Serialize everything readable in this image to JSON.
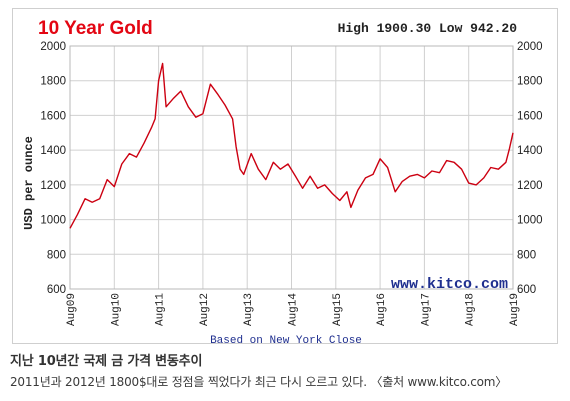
{
  "chart_data": {
    "type": "line",
    "title": "10 Year Gold",
    "high_low_text": "High 1900.30 Low 942.20",
    "ylabel": "USD per ounce",
    "xlabel_note": "Based on New York Close",
    "watermark": "www.kitco.com",
    "ylim": [
      600,
      2000
    ],
    "y_ticks": [
      600,
      800,
      1000,
      1200,
      1400,
      1600,
      1800,
      2000
    ],
    "x_ticks": [
      "Aug09",
      "Aug10",
      "Aug11",
      "Aug12",
      "Aug13",
      "Aug14",
      "Aug15",
      "Aug16",
      "Aug17",
      "Aug18",
      "Aug19"
    ],
    "grid": true,
    "series": [
      {
        "color": "#cc0011",
        "x": [
          2009.58,
          2009.75,
          2009.92,
          2010.08,
          2010.25,
          2010.42,
          2010.58,
          2010.75,
          2010.92,
          2011.08,
          2011.25,
          2011.42,
          2011.5,
          2011.58,
          2011.67,
          2011.75,
          2011.92,
          2012.08,
          2012.25,
          2012.42,
          2012.58,
          2012.75,
          2012.92,
          2013.08,
          2013.25,
          2013.33,
          2013.42,
          2013.5,
          2013.67,
          2013.83,
          2014.0,
          2014.17,
          2014.33,
          2014.5,
          2014.67,
          2014.83,
          2015.0,
          2015.17,
          2015.33,
          2015.5,
          2015.67,
          2015.83,
          2015.92,
          2016.08,
          2016.25,
          2016.42,
          2016.58,
          2016.75,
          2016.92,
          2017.08,
          2017.25,
          2017.42,
          2017.58,
          2017.75,
          2017.92,
          2018.08,
          2018.25,
          2018.42,
          2018.58,
          2018.75,
          2018.92,
          2019.08,
          2019.25,
          2019.42,
          2019.5,
          2019.58
        ],
        "y": [
          950,
          1030,
          1120,
          1100,
          1120,
          1230,
          1190,
          1320,
          1380,
          1360,
          1440,
          1530,
          1580,
          1800,
          1900,
          1650,
          1700,
          1740,
          1650,
          1590,
          1610,
          1780,
          1720,
          1660,
          1580,
          1420,
          1290,
          1260,
          1380,
          1290,
          1230,
          1330,
          1290,
          1320,
          1250,
          1180,
          1250,
          1180,
          1200,
          1150,
          1110,
          1160,
          1070,
          1170,
          1240,
          1260,
          1350,
          1300,
          1160,
          1220,
          1250,
          1260,
          1240,
          1280,
          1270,
          1340,
          1330,
          1290,
          1210,
          1200,
          1240,
          1300,
          1290,
          1330,
          1410,
          1500
        ]
      }
    ]
  },
  "caption": {
    "title": "지난 10년간 국제 금 가격 변동추이",
    "body": "2011년과 2012년 1800$대로 정점을 찍었다가 최근 다시 오르고 있다. 〈출처 www.kitco.com〉"
  }
}
